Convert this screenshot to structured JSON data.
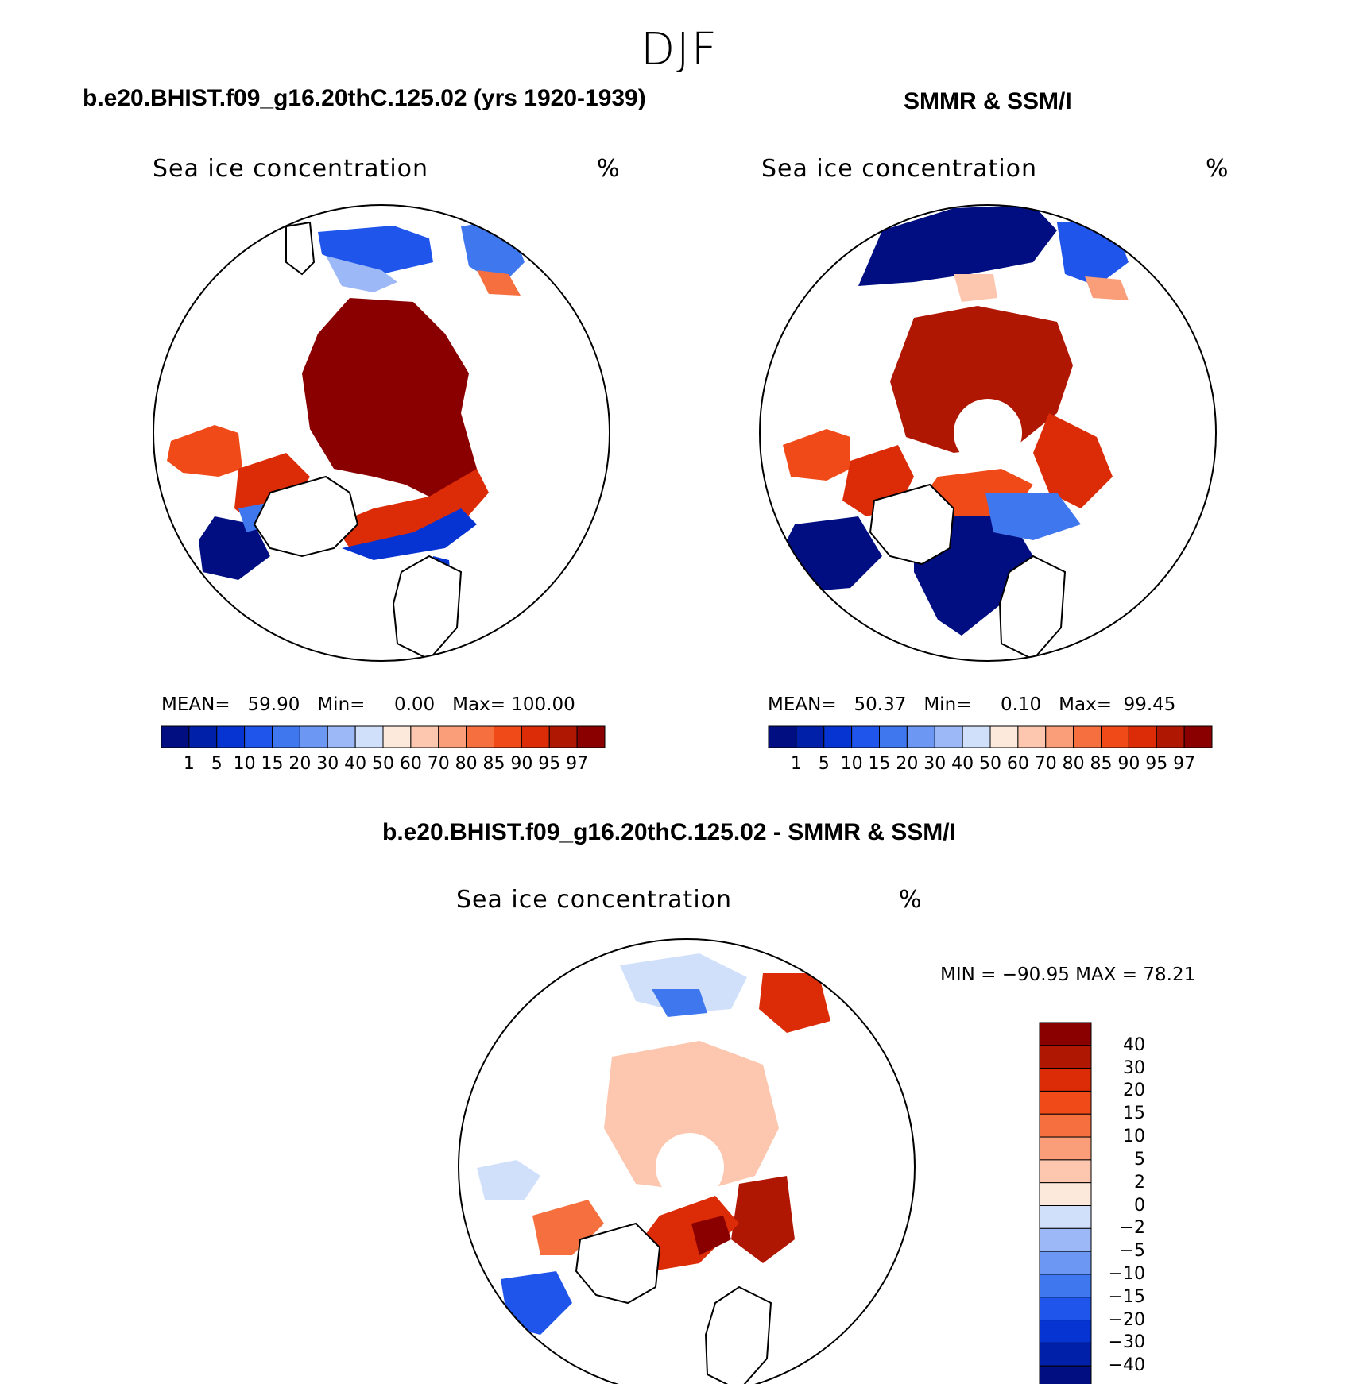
{
  "season": "DJF",
  "panels": [
    {
      "case_title": "b.e20.BHIST.f09_g16.20thC.125.02 (yrs 1920-1939)",
      "variable": "Sea ice concentration",
      "units": "%",
      "stats": {
        "mean_label": "MEAN=",
        "mean": "59.90",
        "min_label": "Min=",
        "min": "0.00",
        "max_label": "Max=",
        "max": "100.00"
      }
    },
    {
      "case_title": "SMMR & SSM/I",
      "variable": "Sea ice concentration",
      "units": "%",
      "stats": {
        "mean_label": "MEAN=",
        "mean": "50.37",
        "min_label": "Min=",
        "min": "0.10",
        "max_label": "Max=",
        "max": "99.45"
      }
    }
  ],
  "difference": {
    "title": "b.e20.BHIST.f09_g16.20thC.125.02 - SMMR & SSM/I",
    "variable": "Sea ice concentration",
    "units": "%",
    "minmax": "MIN = −90.95 MAX =   78.21"
  },
  "colorbar_levels": [
    "1",
    "5",
    "10",
    "15",
    "20",
    "30",
    "40",
    "50",
    "60",
    "70",
    "80",
    "85",
    "90",
    "95",
    "97"
  ],
  "colorbar_colors": [
    "#000e82",
    "#0020a9",
    "#0534d3",
    "#1f55eb",
    "#3f77ef",
    "#6c98f3",
    "#9db8f7",
    "#d0e0fb",
    "#fde8dc",
    "#fcc7ae",
    "#f99e79",
    "#f66f3f",
    "#f04a18",
    "#dc2c07",
    "#b01703",
    "#8a0000"
  ],
  "diff_levels": [
    "40",
    "30",
    "20",
    "15",
    "10",
    "5",
    "2",
    "0",
    "−2",
    "−5",
    "−10",
    "−15",
    "−20",
    "−30",
    "−40"
  ],
  "diff_colors": [
    "#8a0000",
    "#b01703",
    "#dc2c07",
    "#f04a18",
    "#f66f3f",
    "#f99e79",
    "#fcc7ae",
    "#fde8dc",
    "#d0e0fb",
    "#9db8f7",
    "#6c98f3",
    "#3f77ef",
    "#1f55eb",
    "#0534d3",
    "#0020a9",
    "#000e82"
  ]
}
